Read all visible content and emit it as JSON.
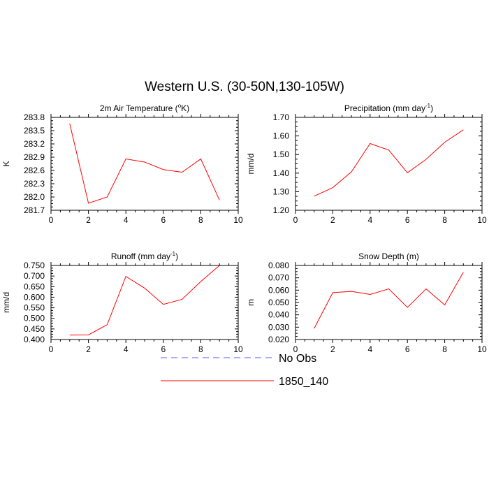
{
  "figure": {
    "title": "Western U.S. (30-50N,130-105W)"
  },
  "legend": {
    "placement": "bottom-center",
    "entries": [
      {
        "label": "No Obs",
        "color": "#5a5aff",
        "dashed": true
      },
      {
        "label": "1850_140",
        "color": "#ff0000",
        "dashed": false
      }
    ]
  },
  "chart_data": [
    {
      "type": "line",
      "title_main": "2m Air Temperature (",
      "title_sup": "o",
      "title_end": "K)",
      "ylabel": "K",
      "xlim": [
        0,
        10
      ],
      "ylim": [
        281.7,
        283.8
      ],
      "xticks": [
        "0",
        "2",
        "4",
        "6",
        "8",
        "10"
      ],
      "yticks": [
        "281.7",
        "282.0",
        "282.3",
        "282.6",
        "282.9",
        "283.2",
        "283.5",
        "283.8"
      ],
      "x": [
        1,
        2,
        3,
        4,
        5,
        6,
        7,
        8,
        9
      ],
      "series": [
        {
          "name": "1850_140",
          "values": [
            283.66,
            281.86,
            282.0,
            282.86,
            282.79,
            282.62,
            282.56,
            282.86,
            281.93
          ]
        }
      ]
    },
    {
      "type": "line",
      "title_main": "Precipitation (mm day",
      "title_sup": "-1",
      "title_end": ")",
      "ylabel": "mm/d",
      "xlim": [
        0,
        10
      ],
      "ylim": [
        1.2,
        1.7
      ],
      "xticks": [
        "0",
        "2",
        "4",
        "6",
        "8",
        "10"
      ],
      "yticks": [
        "1.20",
        "1.30",
        "1.40",
        "1.50",
        "1.60",
        "1.70"
      ],
      "x": [
        1,
        2,
        3,
        4,
        5,
        6,
        7,
        8,
        9
      ],
      "series": [
        {
          "name": "1850_140",
          "values": [
            1.276,
            1.322,
            1.407,
            1.559,
            1.524,
            1.402,
            1.474,
            1.566,
            1.633
          ]
        }
      ]
    },
    {
      "type": "line",
      "title_main": "Runoff (mm day",
      "title_sup": "-1",
      "title_end": ")",
      "ylabel": "mm/d",
      "xlim": [
        0,
        10
      ],
      "ylim": [
        0.4,
        0.75
      ],
      "xticks": [
        "0",
        "2",
        "4",
        "6",
        "8",
        "10"
      ],
      "yticks": [
        "0.400",
        "0.450",
        "0.500",
        "0.550",
        "0.600",
        "0.650",
        "0.700",
        "0.750"
      ],
      "x": [
        1,
        2,
        3,
        4,
        5,
        6,
        7,
        8,
        9
      ],
      "series": [
        {
          "name": "1850_140",
          "values": [
            0.421,
            0.422,
            0.47,
            0.698,
            0.643,
            0.566,
            0.59,
            0.674,
            0.75
          ]
        }
      ]
    },
    {
      "type": "line",
      "title_main": "Snow Depth (m)",
      "title_sup": "",
      "title_end": "",
      "ylabel": "m",
      "xlim": [
        0,
        10
      ],
      "ylim": [
        0.02,
        0.08
      ],
      "xticks": [
        "0",
        "2",
        "4",
        "6",
        "8",
        "10"
      ],
      "yticks": [
        "0.020",
        "0.030",
        "0.040",
        "0.050",
        "0.060",
        "0.070",
        "0.080"
      ],
      "x": [
        1,
        2,
        3,
        4,
        5,
        6,
        7,
        8,
        9
      ],
      "series": [
        {
          "name": "1850_140",
          "values": [
            0.029,
            0.058,
            0.059,
            0.0565,
            0.061,
            0.046,
            0.061,
            0.048,
            0.0745
          ]
        }
      ]
    }
  ]
}
